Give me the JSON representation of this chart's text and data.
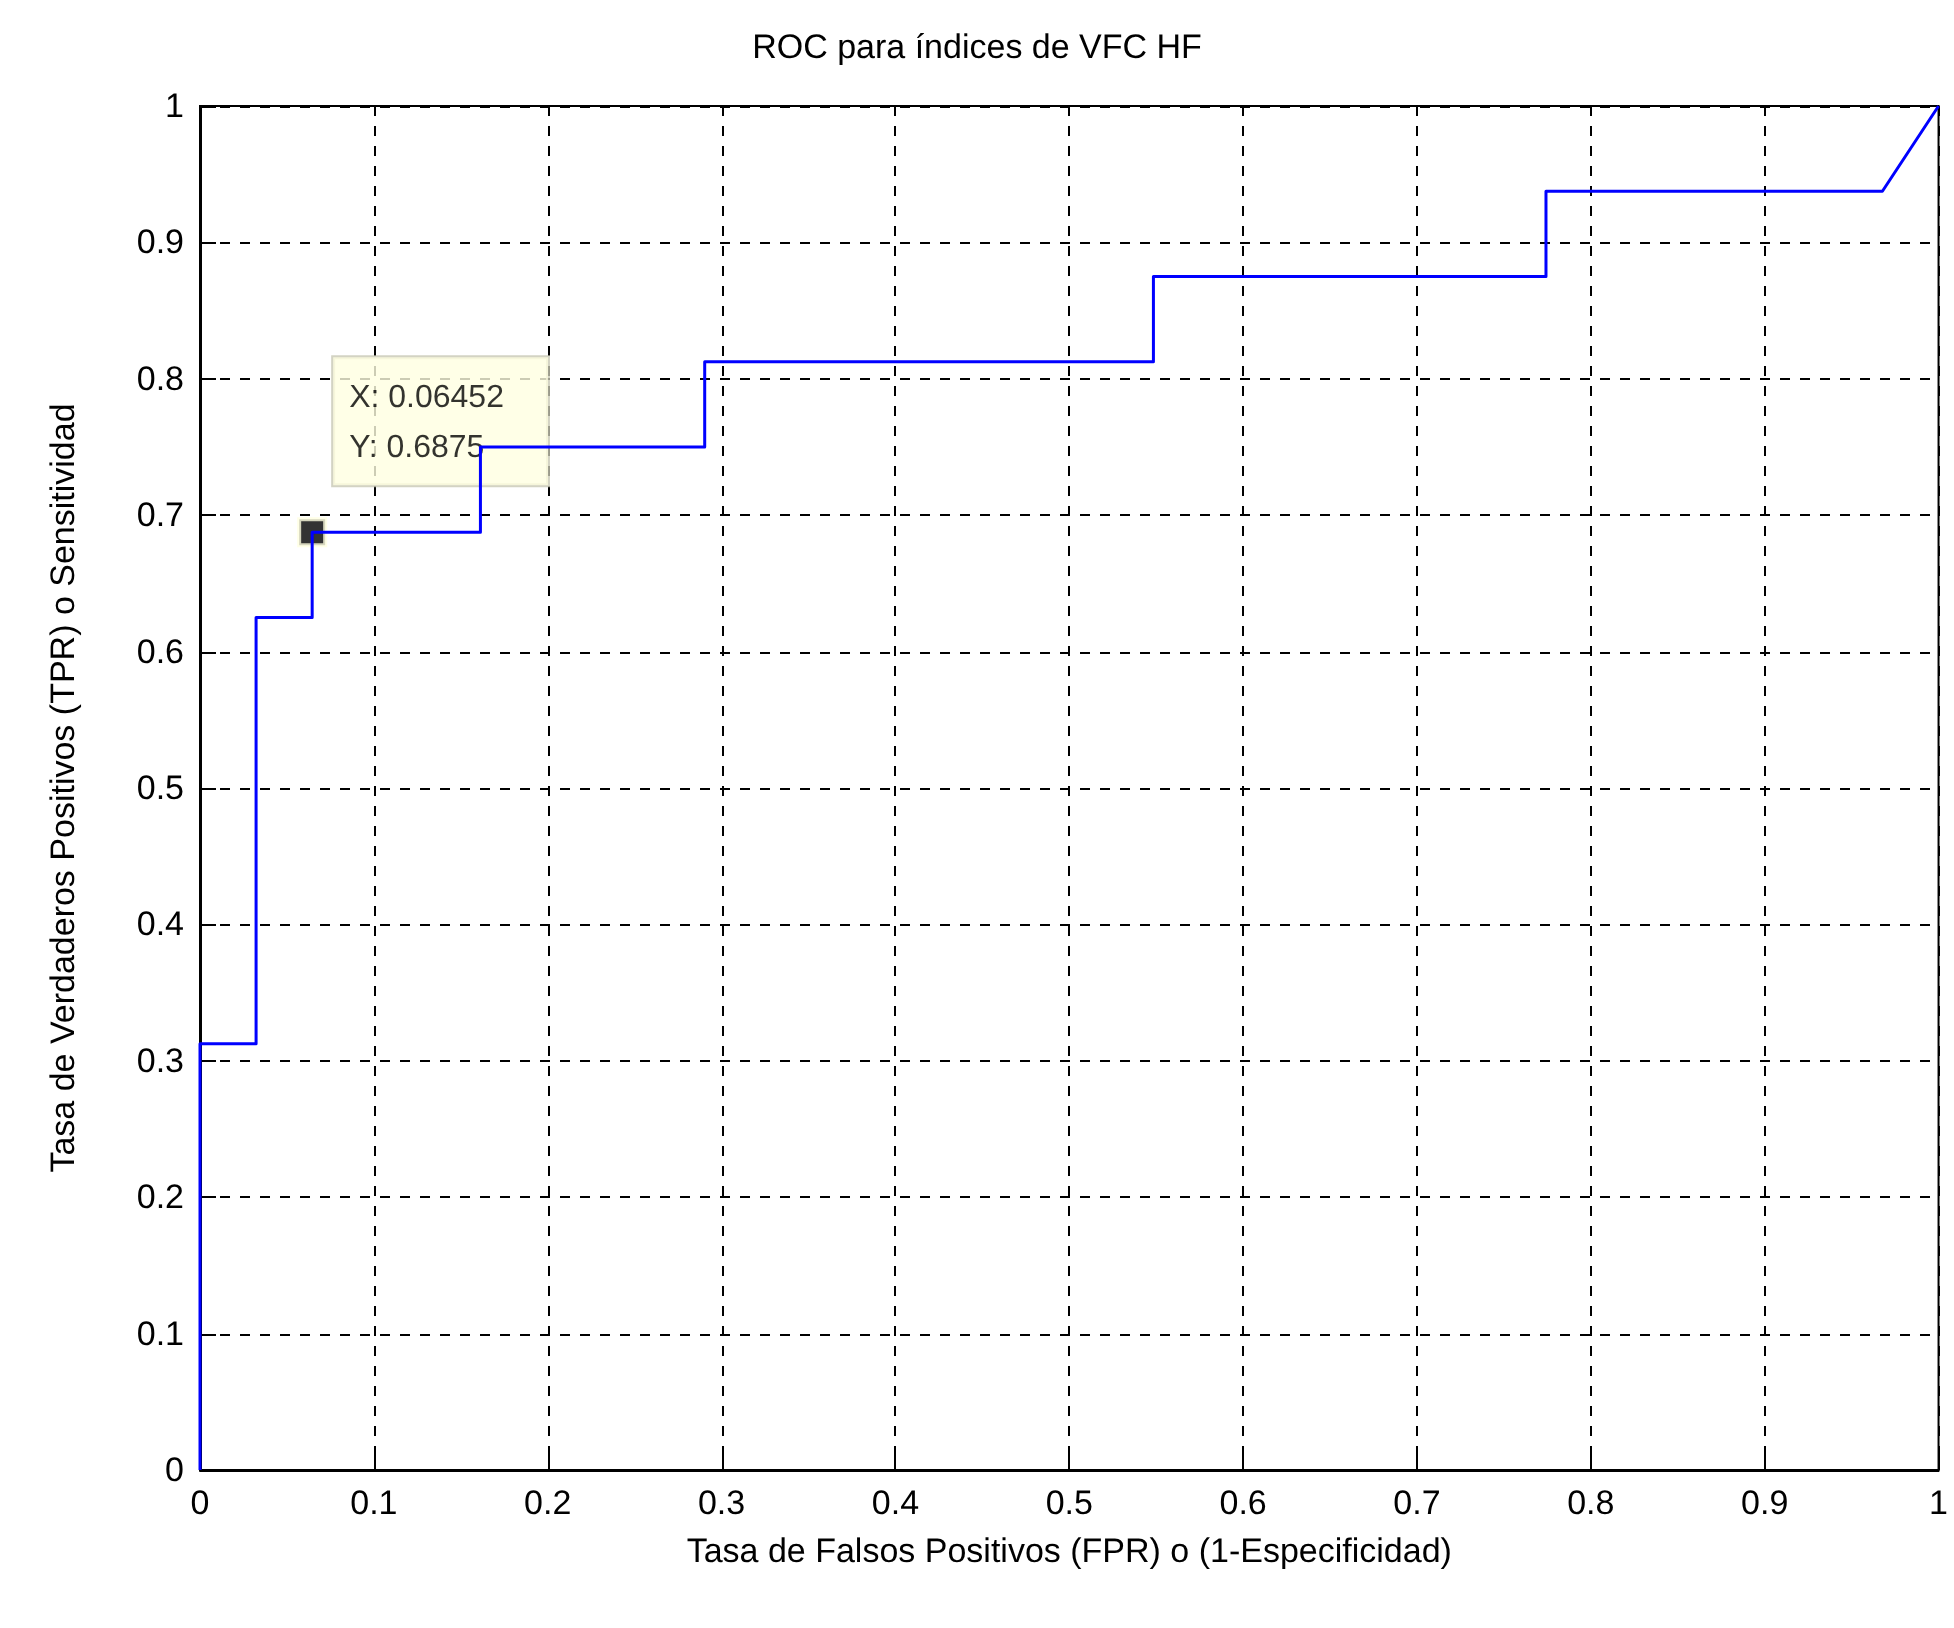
{
  "chart_data": {
    "type": "step",
    "title": "ROC para índices de VFC HF",
    "xlabel": "Tasa de Falsos Positivos (FPR) o (1-Especificidad)",
    "ylabel": "Tasa de Verdaderos Positivos (TPR) o Sensitividad",
    "series": [
      {
        "color": "#0000ff",
        "x": [
          0,
          0,
          0.03226,
          0.03226,
          0.06452,
          0.06452,
          0.1613,
          0.1613,
          0.2903,
          0.2903,
          0.5484,
          0.5484,
          0.7742,
          0.7742,
          0.9677,
          1
        ],
        "values": [
          0,
          0.3125,
          0.3125,
          0.625,
          0.625,
          0.6875,
          0.6875,
          0.75,
          0.75,
          0.8125,
          0.8125,
          0.875,
          0.875,
          0.9375,
          0.9375,
          1
        ]
      }
    ],
    "xlim": [
      0,
      1
    ],
    "xticks": [
      0,
      0.1,
      0.2,
      0.3,
      0.4,
      0.5,
      0.6,
      0.7,
      0.8,
      0.9,
      1
    ],
    "ylim": [
      0,
      1
    ],
    "yticks": [
      0,
      0.1,
      0.2,
      0.3,
      0.4,
      0.5,
      0.6,
      0.7,
      0.8,
      0.9,
      1
    ],
    "grid": true,
    "line_style": "solid",
    "marker": "none",
    "annotations": [
      {
        "text": "X: 0.06452\nY: 0.6875",
        "x": 0.06452,
        "y": 0.6875
      }
    ]
  }
}
